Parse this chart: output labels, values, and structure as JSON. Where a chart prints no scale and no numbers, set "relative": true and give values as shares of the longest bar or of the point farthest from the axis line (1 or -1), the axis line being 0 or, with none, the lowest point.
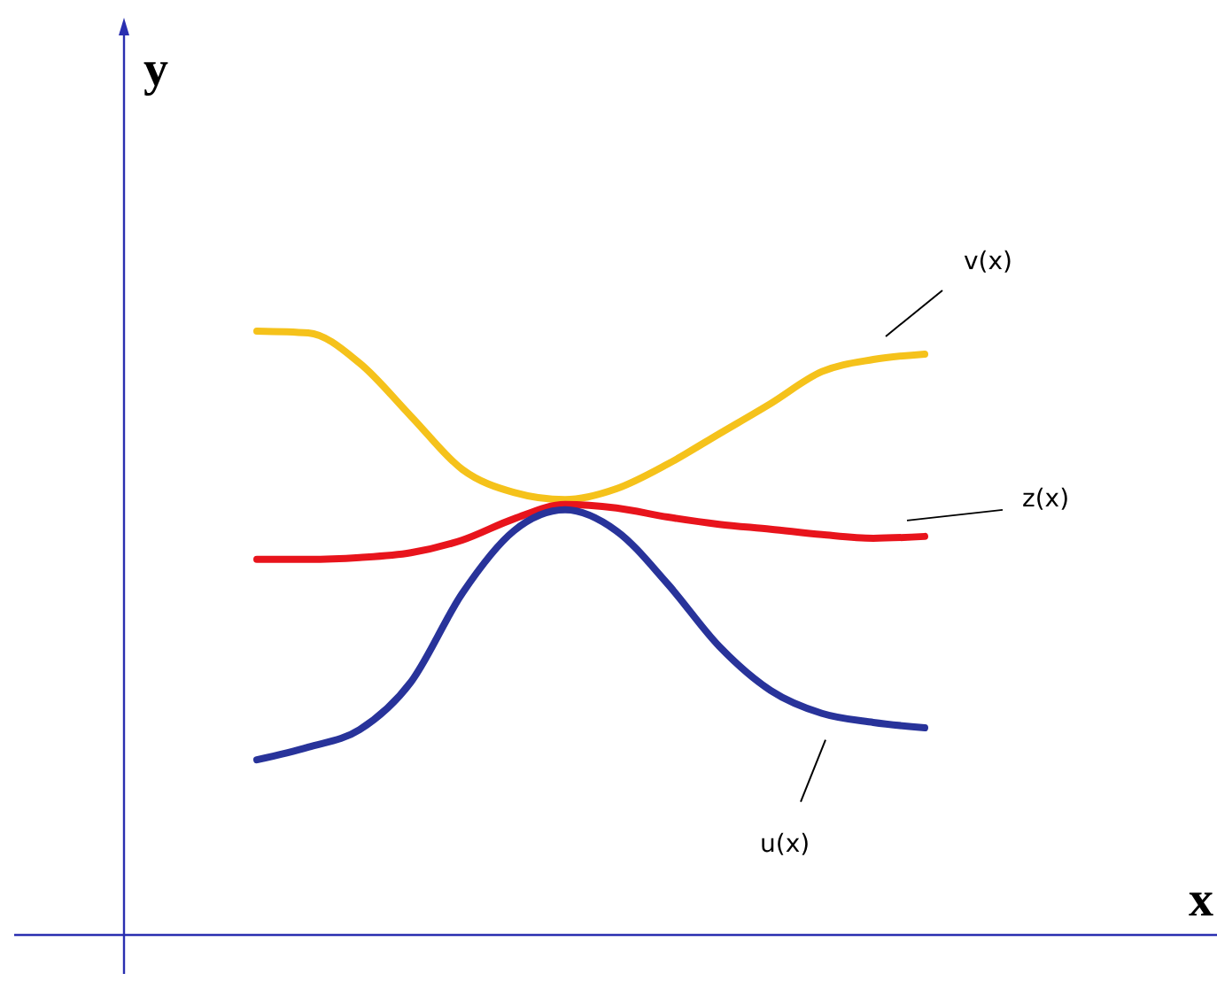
{
  "chart_data": {
    "type": "line",
    "relative": true,
    "xlabel": "x",
    "ylabel": "y",
    "categories": [
      null,
      null,
      null,
      null,
      null,
      null,
      null,
      null,
      null,
      null,
      null,
      null,
      null,
      null
    ],
    "series": [
      {
        "name": "v(x)",
        "color": "#f5c21b",
        "values": [
          1,
          0.997,
          0.947,
          0.859,
          0.771,
          0.733,
          0.721,
          0.739,
          0.78,
          0.83,
          0.88,
          0.933,
          0.953,
          0.962
        ]
      },
      {
        "name": "z(x)",
        "color": "#e8141c",
        "values": [
          0.622,
          0.622,
          0.625,
          0.633,
          0.654,
          0.689,
          0.713,
          0.707,
          0.692,
          0.68,
          0.672,
          0.663,
          0.657,
          0.66
        ]
      },
      {
        "name": "u(x)",
        "color": "#28339a",
        "values": [
          0.29,
          0.311,
          0.34,
          0.419,
          0.566,
          0.669,
          0.704,
          0.669,
          0.581,
          0.478,
          0.405,
          0.367,
          0.352,
          0.343
        ]
      }
    ]
  }
}
